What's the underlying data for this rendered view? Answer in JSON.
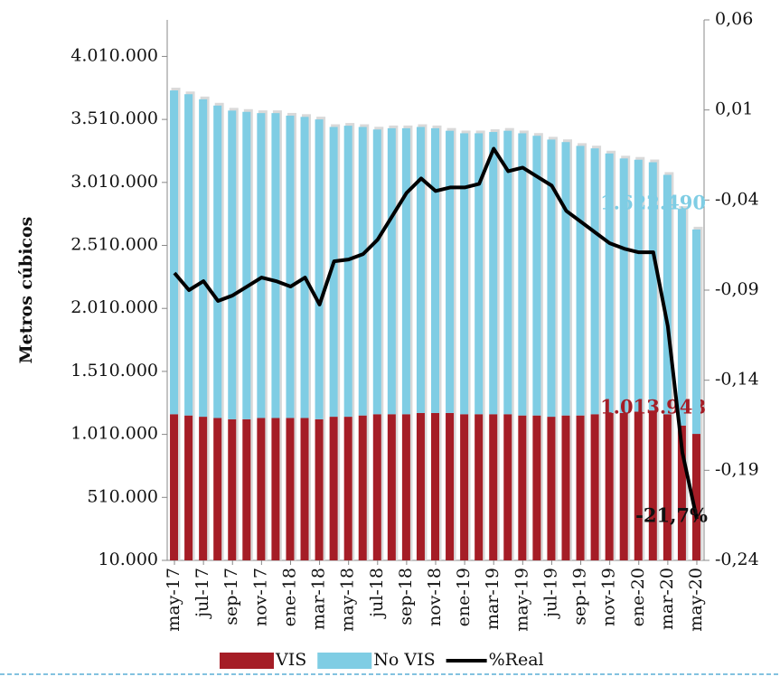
{
  "chart_data": {
    "type": "bar_line",
    "y_axis_label": "Metros cúbicos",
    "categories": [
      "may-17",
      null,
      "jul-17",
      null,
      "sep-17",
      null,
      "nov-17",
      null,
      "ene-18",
      null,
      "mar-18",
      null,
      "may-18",
      null,
      "jul-18",
      null,
      "sep-18",
      null,
      "nov-18",
      null,
      "ene-19",
      null,
      "mar-19",
      null,
      "may-19",
      null,
      "jul-19",
      null,
      "sep-19",
      null,
      "nov-19",
      null,
      "ene-20",
      null,
      "mar-20",
      null,
      "may-20"
    ],
    "series": [
      {
        "name": "VIS",
        "color": "#a51d26",
        "axis": "y",
        "values": [
          1170000,
          1160000,
          1150000,
          1140000,
          1130000,
          1130000,
          1140000,
          1140000,
          1140000,
          1140000,
          1130000,
          1150000,
          1150000,
          1160000,
          1170000,
          1170000,
          1170000,
          1180000,
          1180000,
          1180000,
          1170000,
          1170000,
          1170000,
          1170000,
          1160000,
          1160000,
          1150000,
          1160000,
          1160000,
          1170000,
          1180000,
          1180000,
          1190000,
          1200000,
          1170000,
          1080000,
          1013948
        ],
        "value_labels": [
          null,
          null,
          null,
          null,
          null,
          null,
          null,
          null,
          null,
          null,
          null,
          null,
          null,
          null,
          null,
          null,
          null,
          null,
          null,
          null,
          null,
          null,
          null,
          null,
          null,
          null,
          null,
          null,
          null,
          null,
          null,
          null,
          null,
          null,
          null,
          null,
          "1.013.948"
        ]
      },
      {
        "name": "No VIS",
        "color": "#7fcde4",
        "axis": "y",
        "values": [
          2570000,
          2550000,
          2520000,
          2480000,
          2450000,
          2440000,
          2420000,
          2420000,
          2400000,
          2390000,
          2380000,
          2300000,
          2310000,
          2290000,
          2260000,
          2270000,
          2270000,
          2270000,
          2260000,
          2240000,
          2230000,
          2230000,
          2240000,
          2250000,
          2240000,
          2220000,
          2200000,
          2170000,
          2140000,
          2110000,
          2060000,
          2020000,
          2000000,
          1970000,
          1900000,
          1720000,
          1622490
        ],
        "value_labels": [
          null,
          null,
          null,
          null,
          null,
          null,
          null,
          null,
          null,
          null,
          null,
          null,
          null,
          null,
          null,
          null,
          null,
          null,
          null,
          null,
          null,
          null,
          null,
          null,
          null,
          null,
          null,
          null,
          null,
          null,
          null,
          null,
          null,
          null,
          null,
          null,
          "1.622.490"
        ]
      },
      {
        "name": "%Real",
        "color": "#000000",
        "axis": "y2",
        "values": [
          -0.0805,
          -0.09,
          -0.085,
          -0.096,
          -0.093,
          -0.088,
          -0.083,
          -0.085,
          -0.088,
          -0.083,
          -0.098,
          -0.074,
          -0.073,
          -0.07,
          -0.062,
          -0.049,
          -0.036,
          -0.028,
          -0.035,
          -0.033,
          -0.033,
          -0.031,
          -0.0115,
          -0.024,
          -0.022,
          -0.027,
          -0.032,
          -0.046,
          -0.052,
          -0.058,
          -0.064,
          -0.067,
          -0.069,
          -0.069,
          -0.11,
          -0.18,
          -0.217
        ],
        "value_labels": [
          null,
          null,
          null,
          null,
          null,
          null,
          null,
          null,
          null,
          null,
          null,
          null,
          null,
          null,
          null,
          null,
          null,
          null,
          null,
          null,
          null,
          null,
          null,
          null,
          null,
          null,
          null,
          null,
          null,
          null,
          null,
          null,
          null,
          null,
          null,
          null,
          "-21,7%"
        ]
      }
    ],
    "ylim": [
      10000,
      4300000
    ],
    "yticks": [
      {
        "value": 10000,
        "label": "10.000"
      },
      {
        "value": 510000,
        "label": "510.000"
      },
      {
        "value": 1010000,
        "label": "1.010.000"
      },
      {
        "value": 1510000,
        "label": "1.510.000"
      },
      {
        "value": 2010000,
        "label": "2.010.000"
      },
      {
        "value": 2510000,
        "label": "2.510.000"
      },
      {
        "value": 3010000,
        "label": "3.010.000"
      },
      {
        "value": 3510000,
        "label": "3.510.000"
      },
      {
        "value": 4010000,
        "label": "4.010.000"
      }
    ],
    "y2lim": [
      -0.24,
      0.06
    ],
    "y2ticks": [
      {
        "value": -0.24,
        "label": "-0,24"
      },
      {
        "value": -0.19,
        "label": "-0,19"
      },
      {
        "value": -0.14,
        "label": "-0,14"
      },
      {
        "value": -0.09,
        "label": "-0,09"
      },
      {
        "value": -0.04,
        "label": "-0,04"
      },
      {
        "value": 0.01,
        "label": "0,01"
      },
      {
        "value": 0.06,
        "label": "0,06"
      }
    ],
    "legend": "bottom",
    "grid": false
  }
}
